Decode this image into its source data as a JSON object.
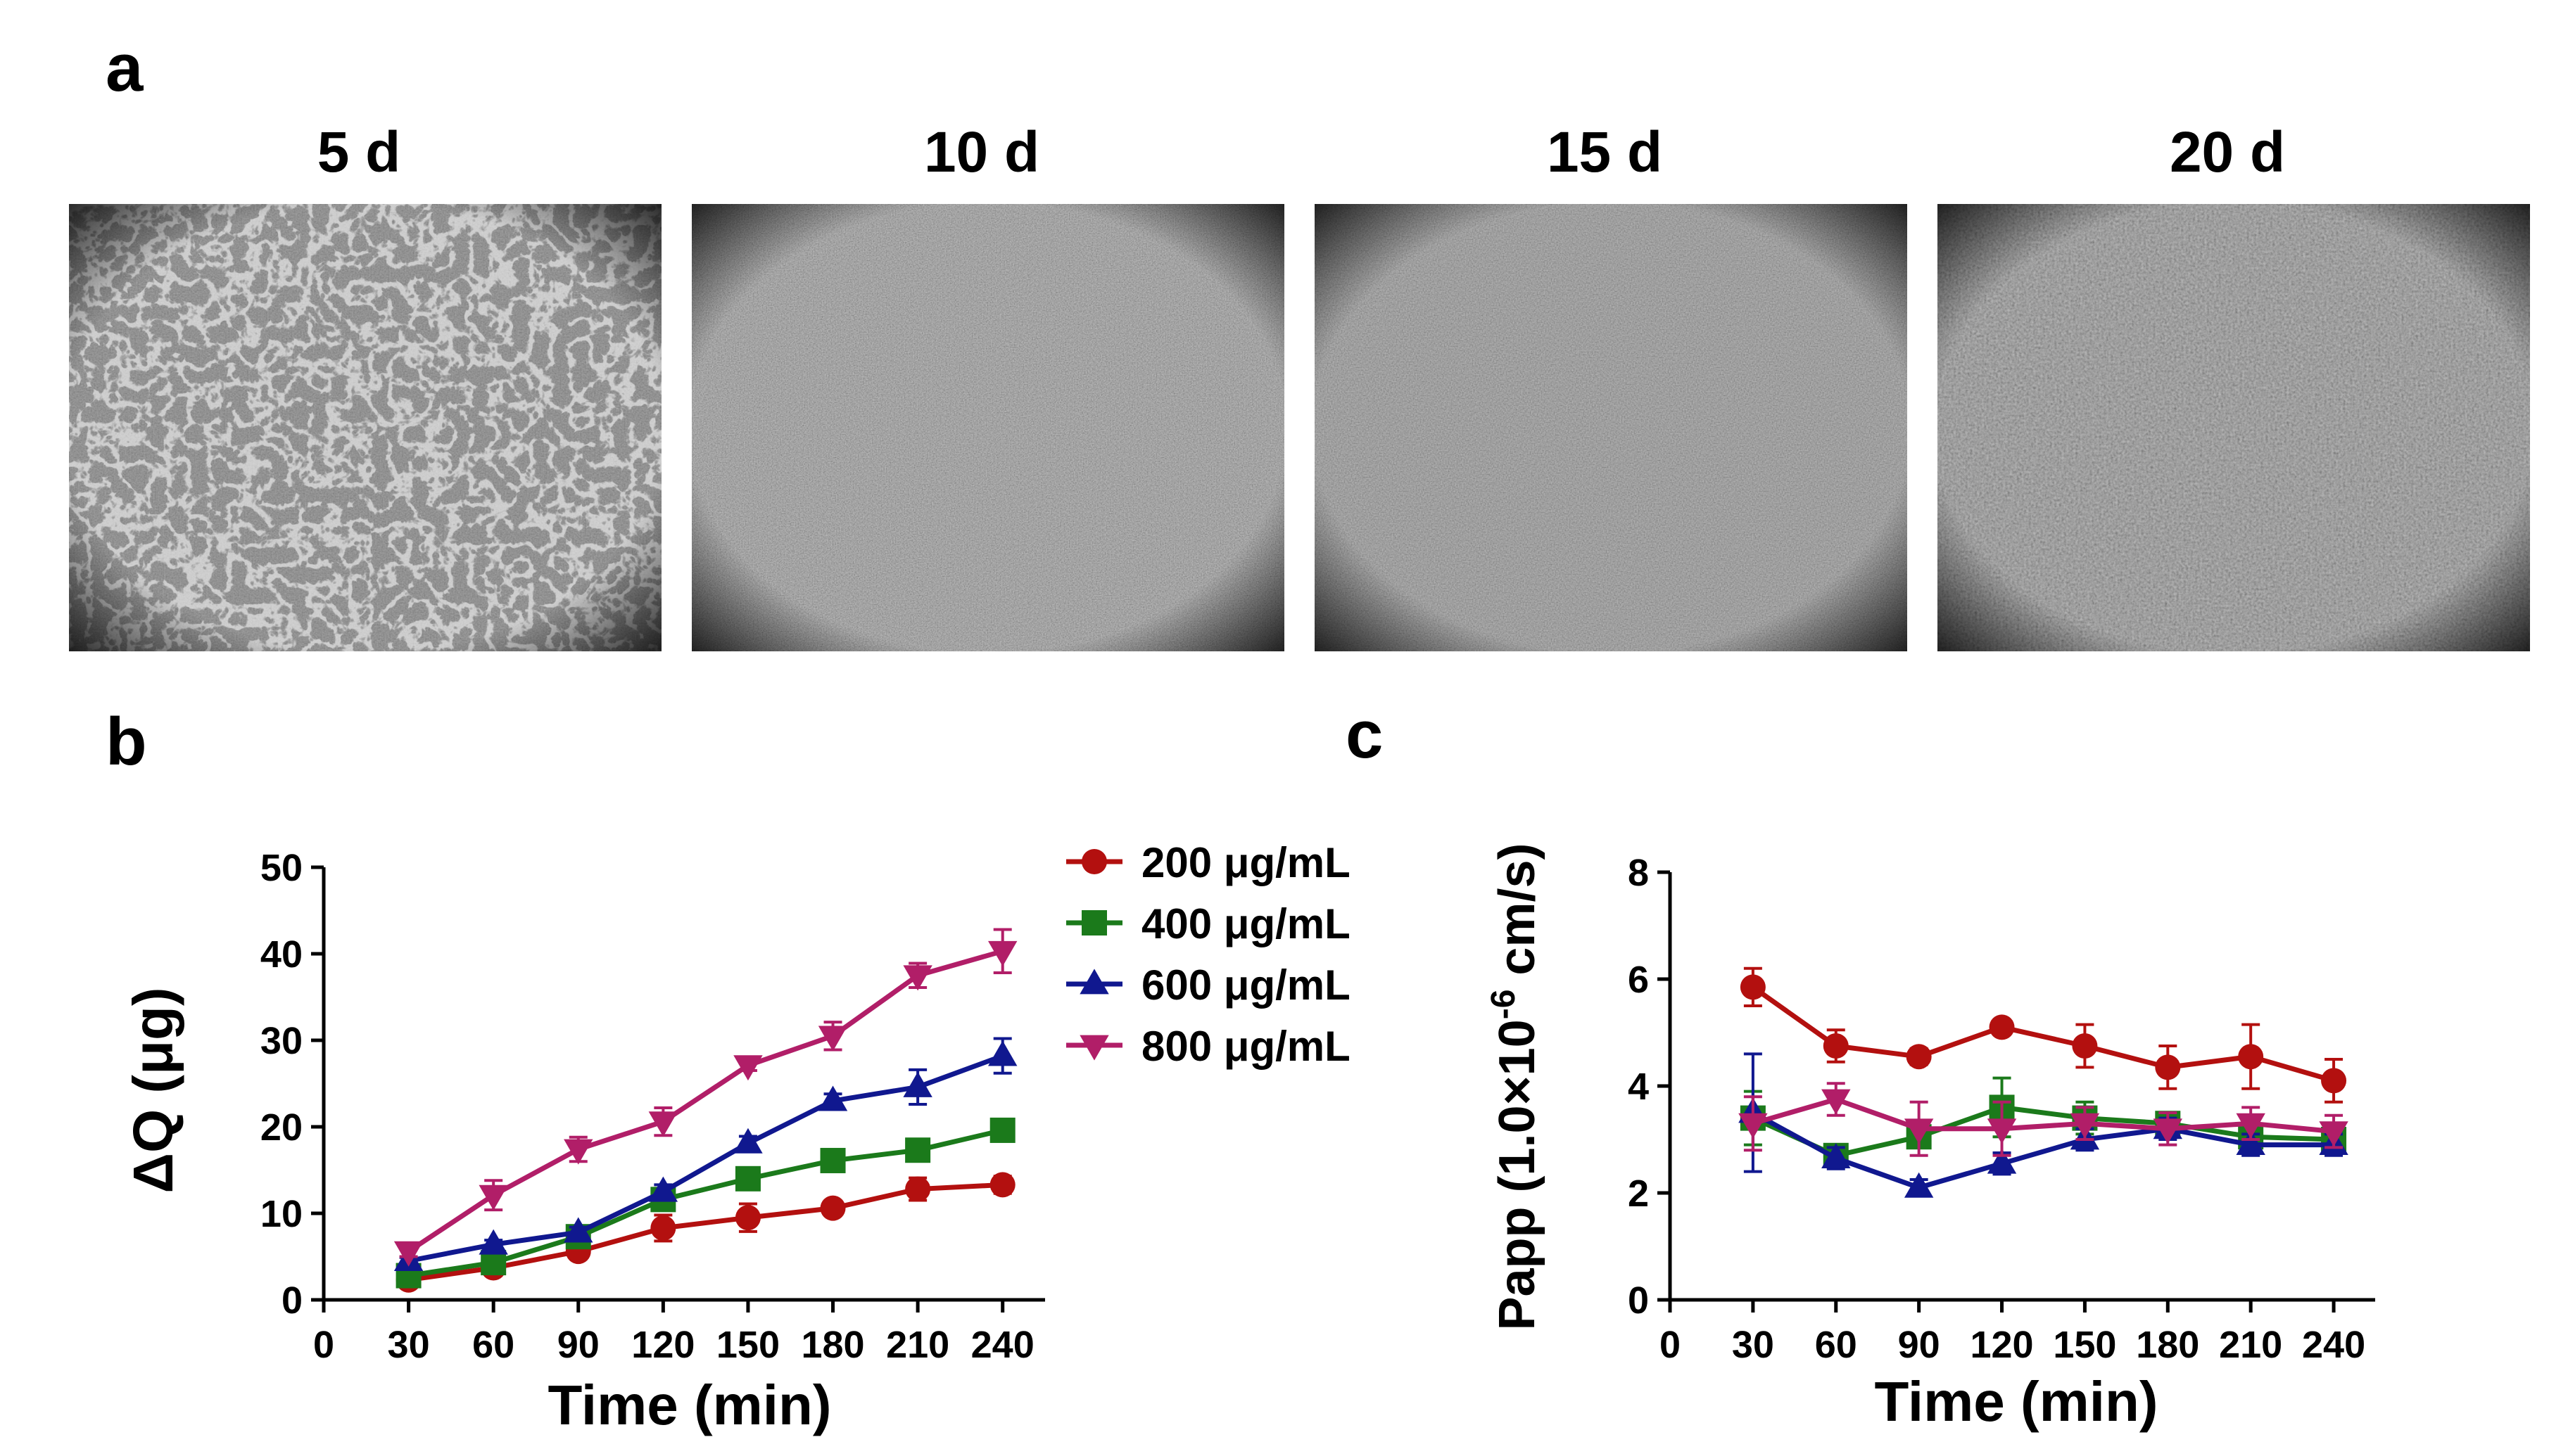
{
  "panels": {
    "a": {
      "letter": "a",
      "labels": [
        "5 d",
        "10 d",
        "15 d",
        "20 d"
      ]
    },
    "b": {
      "letter": "b"
    },
    "c": {
      "letter": "c"
    }
  },
  "colors": {
    "series": [
      "#b3100f",
      "#1b7a1b",
      "#10188f",
      "#b11e68"
    ]
  },
  "chart_data": [
    {
      "type": "line",
      "panel": "b",
      "xlabel": "Time (min)",
      "ylabel": "ΔQ (μg)",
      "xlim": [
        0,
        255
      ],
      "ylim": [
        0,
        50
      ],
      "xticks": [
        0,
        30,
        60,
        90,
        120,
        150,
        180,
        210,
        240
      ],
      "yticks": [
        0,
        10,
        20,
        30,
        40,
        50
      ],
      "x": [
        30,
        60,
        90,
        120,
        150,
        180,
        210,
        240
      ],
      "legend_position": "right",
      "series": [
        {
          "name": "200 μg/mL",
          "marker": "circle",
          "values": [
            2.3,
            3.7,
            5.6,
            8.3,
            9.5,
            10.6,
            12.8,
            13.3
          ],
          "errors": [
            0.5,
            0.5,
            0.6,
            1.5,
            1.6,
            0.7,
            1.3,
            1.0
          ]
        },
        {
          "name": "400 μg/mL",
          "marker": "square",
          "values": [
            2.8,
            4.3,
            7.3,
            11.6,
            14.0,
            16.1,
            17.3,
            19.6
          ],
          "errors": [
            0.4,
            0.5,
            0.5,
            1.0,
            1.0,
            0.8,
            0.9,
            0.9
          ]
        },
        {
          "name": "600 μg/mL",
          "marker": "triangle-up",
          "values": [
            4.5,
            6.4,
            7.8,
            12.5,
            18.1,
            23.0,
            24.6,
            28.2
          ],
          "errors": [
            0.4,
            0.5,
            0.6,
            0.8,
            0.8,
            0.8,
            2.0,
            2.0
          ]
        },
        {
          "name": "800 μg/mL",
          "marker": "triangle-down",
          "values": [
            5.6,
            12.1,
            17.4,
            20.6,
            27.1,
            30.5,
            37.5,
            40.3
          ],
          "errors": [
            0.6,
            1.7,
            1.4,
            1.6,
            0.6,
            1.6,
            1.4,
            2.5
          ]
        }
      ]
    },
    {
      "type": "line",
      "panel": "c",
      "xlabel": "Time (min)",
      "ylabel": "Papp (1.0×10",
      "ylabel_sup": "-6",
      "ylabel_end": " cm/s)",
      "xlim": [
        0,
        255
      ],
      "ylim": [
        0,
        8
      ],
      "xticks": [
        0,
        30,
        60,
        90,
        120,
        150,
        180,
        210,
        240
      ],
      "yticks": [
        0,
        2,
        4,
        6,
        8
      ],
      "x": [
        30,
        60,
        90,
        120,
        150,
        180,
        210,
        240
      ],
      "series": [
        {
          "name": "200 μg/mL",
          "marker": "circle",
          "values": [
            5.85,
            4.75,
            4.55,
            5.1,
            4.75,
            4.35,
            4.55,
            4.1
          ],
          "errors": [
            0.35,
            0.3,
            0.15,
            0.12,
            0.4,
            0.4,
            0.6,
            0.4
          ]
        },
        {
          "name": "400 μg/mL",
          "marker": "square",
          "values": [
            3.4,
            2.7,
            3.05,
            3.6,
            3.4,
            3.3,
            3.05,
            3.0
          ],
          "errors": [
            0.5,
            0.2,
            0.2,
            0.55,
            0.3,
            0.2,
            0.2,
            0.2
          ]
        },
        {
          "name": "600 μg/mL",
          "marker": "triangle-up",
          "values": [
            3.5,
            2.65,
            2.1,
            2.55,
            3.0,
            3.2,
            2.9,
            2.9
          ],
          "errors": [
            1.1,
            0.2,
            0.15,
            0.2,
            0.2,
            0.2,
            0.2,
            0.2
          ]
        },
        {
          "name": "800 μg/mL",
          "marker": "triangle-down",
          "values": [
            3.3,
            3.75,
            3.2,
            3.2,
            3.3,
            3.2,
            3.3,
            3.15
          ],
          "errors": [
            0.5,
            0.3,
            0.5,
            0.5,
            0.3,
            0.3,
            0.3,
            0.3
          ]
        }
      ]
    }
  ]
}
